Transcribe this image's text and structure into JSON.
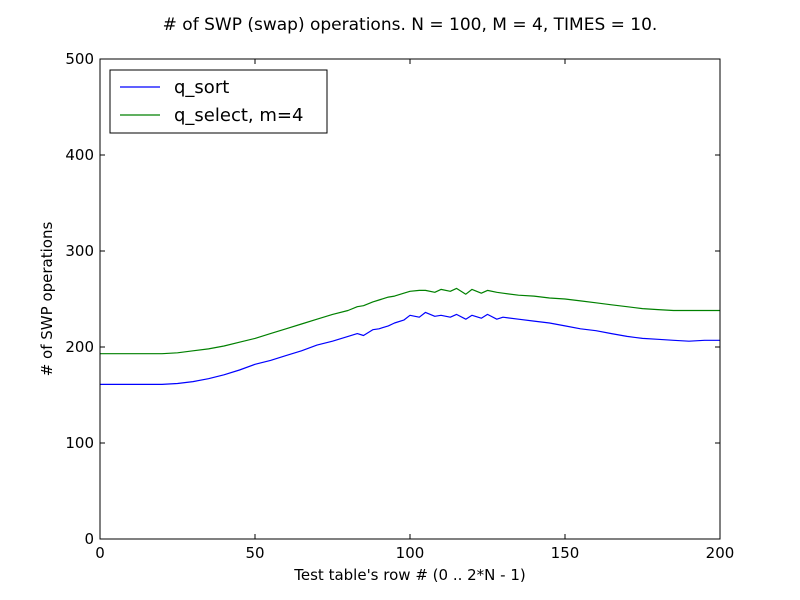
{
  "chart_data": {
    "type": "line",
    "title": "# of SWP (swap) operations. N = 100, M = 4, TIMES = 10.",
    "xlabel": "Test table's row # (0 .. 2*N - 1)",
    "ylabel": "# of SWP operations",
    "xlim": [
      0,
      200
    ],
    "ylim": [
      0,
      500
    ],
    "xticks": [
      0,
      50,
      100,
      150,
      200
    ],
    "yticks": [
      0,
      100,
      200,
      300,
      400,
      500
    ],
    "grid": false,
    "legend_position": "top-left",
    "series": [
      {
        "name": "q_sort",
        "color": "#0000ff",
        "x": [
          0,
          10,
          20,
          25,
          30,
          35,
          40,
          45,
          50,
          55,
          60,
          65,
          70,
          75,
          80,
          83,
          85,
          88,
          90,
          93,
          95,
          98,
          100,
          103,
          105,
          108,
          110,
          113,
          115,
          118,
          120,
          123,
          125,
          128,
          130,
          135,
          140,
          145,
          150,
          155,
          160,
          165,
          170,
          175,
          180,
          185,
          190,
          195,
          200
        ],
        "y": [
          161,
          161,
          161,
          162,
          164,
          167,
          171,
          176,
          182,
          186,
          191,
          196,
          202,
          206,
          211,
          214,
          212,
          218,
          219,
          222,
          225,
          228,
          233,
          231,
          236,
          232,
          233,
          231,
          234,
          229,
          233,
          230,
          234,
          229,
          231,
          229,
          227,
          225,
          222,
          219,
          217,
          214,
          211,
          209,
          208,
          207,
          206,
          207,
          207
        ]
      },
      {
        "name": "q_select, m=4",
        "color": "#008000",
        "x": [
          0,
          10,
          20,
          25,
          30,
          35,
          40,
          45,
          50,
          55,
          60,
          65,
          70,
          75,
          80,
          83,
          85,
          88,
          90,
          93,
          95,
          98,
          100,
          103,
          105,
          108,
          110,
          113,
          115,
          118,
          120,
          123,
          125,
          128,
          130,
          135,
          140,
          145,
          150,
          155,
          160,
          165,
          170,
          175,
          180,
          185,
          190,
          195,
          200
        ],
        "y": [
          193,
          193,
          193,
          194,
          196,
          198,
          201,
          205,
          209,
          214,
          219,
          224,
          229,
          234,
          238,
          242,
          243,
          247,
          249,
          252,
          253,
          256,
          258,
          259,
          259,
          257,
          260,
          258,
          261,
          255,
          260,
          256,
          259,
          257,
          256,
          254,
          253,
          251,
          250,
          248,
          246,
          244,
          242,
          240,
          239,
          238,
          238,
          238,
          238
        ]
      }
    ]
  }
}
